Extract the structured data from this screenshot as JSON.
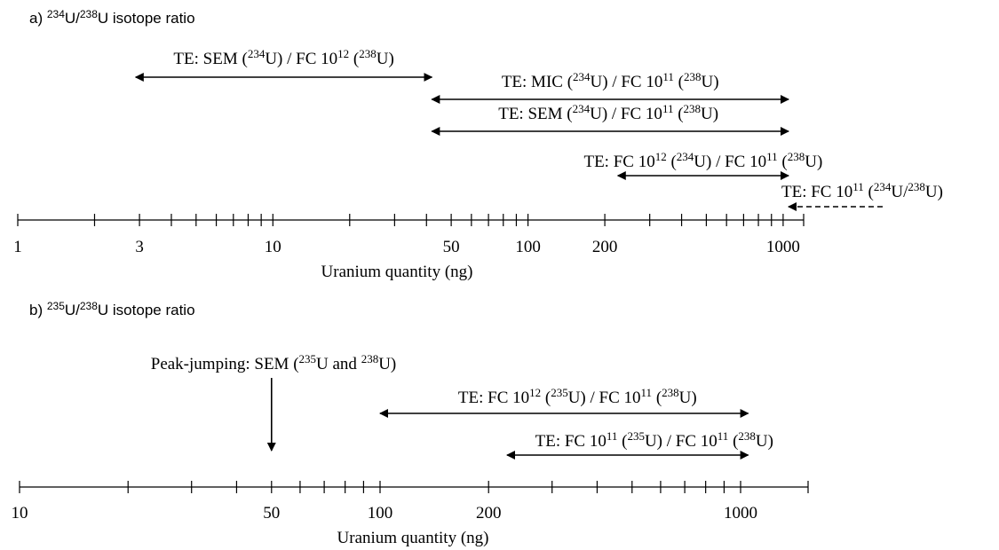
{
  "panel_a": {
    "title": {
      "label": "a) ",
      "sup1": "234",
      "u1": "U/",
      "sup2": "238",
      "u2": "U isotope ratio"
    },
    "axis_label": "Uranium quantity (ng)",
    "tick_labels": [
      "1",
      "3",
      "10",
      "50",
      "100",
      "200",
      "1000"
    ],
    "ranges": [
      {
        "text": [
          "TE: SEM (",
          {
            "sup": "234"
          },
          "U) / FC 10",
          {
            "sup": "12"
          },
          " (",
          {
            "sup": "238"
          },
          "U)"
        ],
        "from_ng": 2.9,
        "to_ng": 42,
        "style": "double-arrow"
      },
      {
        "text": [
          "TE: MIC (",
          {
            "sup": "234"
          },
          "U) / FC 10",
          {
            "sup": "11"
          },
          " (",
          {
            "sup": "238"
          },
          "U)"
        ],
        "from_ng": 42,
        "to_ng": 1050,
        "style": "double-arrow"
      },
      {
        "text": [
          "TE: SEM (",
          {
            "sup": "234"
          },
          "U) / FC 10",
          {
            "sup": "11"
          },
          " (",
          {
            "sup": "238"
          },
          "U)"
        ],
        "from_ng": 42,
        "to_ng": 1050,
        "style": "double-arrow"
      },
      {
        "text": [
          "TE: FC 10",
          {
            "sup": "12"
          },
          " (",
          {
            "sup": "234"
          },
          "U) / FC 10",
          {
            "sup": "11"
          },
          " (",
          {
            "sup": "238"
          },
          "U)"
        ],
        "from_ng": 225,
        "to_ng": 1050,
        "style": "double-arrow"
      },
      {
        "text": [
          "TE: FC 10",
          {
            "sup": "11"
          },
          " (",
          {
            "sup": "234"
          },
          "U/",
          {
            "sup": "238"
          },
          "U)"
        ],
        "from_ng": 1050,
        "to_ng": null,
        "style": "dashed-left-arrow"
      }
    ]
  },
  "panel_b": {
    "title": {
      "label": "b) ",
      "sup1": "235",
      "u1": "U/",
      "sup2": "238",
      "u2": "U isotope ratio"
    },
    "axis_label": "Uranium quantity (ng)",
    "tick_labels": [
      "10",
      "50",
      "100",
      "200",
      "1000"
    ],
    "peak_jumping": {
      "text": [
        "Peak-jumping: SEM (",
        {
          "sup": "235"
        },
        "U and ",
        {
          "sup": "238"
        },
        "U)"
      ],
      "at_ng": 50
    },
    "ranges": [
      {
        "text": [
          "TE: FC 10",
          {
            "sup": "12"
          },
          " (",
          {
            "sup": "235"
          },
          "U) / FC 10",
          {
            "sup": "11"
          },
          " (",
          {
            "sup": "238"
          },
          "U)"
        ],
        "from_ng": 100,
        "to_ng": 1050,
        "style": "double-arrow"
      },
      {
        "text": [
          "TE: FC 10",
          {
            "sup": "11"
          },
          " (",
          {
            "sup": "235"
          },
          "U) / FC 10",
          {
            "sup": "11"
          },
          " (",
          {
            "sup": "238"
          },
          "U)"
        ],
        "from_ng": 225,
        "to_ng": 1050,
        "style": "double-arrow"
      }
    ]
  }
}
